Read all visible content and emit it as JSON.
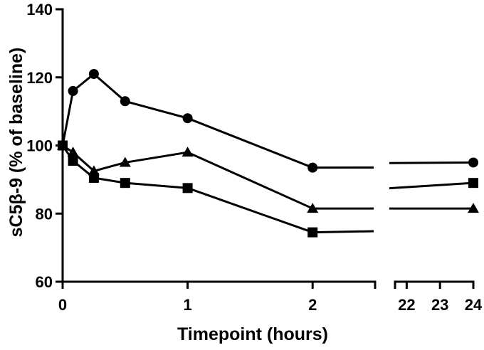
{
  "chart_data": {
    "type": "line",
    "title": "",
    "xlabel": "Timepoint (hours)",
    "ylabel": "sC5β-9 (% of baseline)",
    "ylim": [
      60,
      140
    ],
    "yticks": [
      60,
      80,
      100,
      120,
      140
    ],
    "x_axis_broken": true,
    "x_segments": [
      {
        "range": [
          0,
          2.5
        ],
        "ticks": [
          0,
          1,
          2
        ]
      },
      {
        "range": [
          21.65,
          24
        ],
        "ticks": [
          22,
          23,
          24
        ]
      }
    ],
    "legend": "none",
    "grid": false,
    "series": [
      {
        "marker": "circle",
        "x": [
          0,
          0.083,
          0.25,
          0.5,
          1,
          2,
          24
        ],
        "y": [
          100,
          116,
          121,
          113,
          108,
          93.5,
          95
        ]
      },
      {
        "marker": "triangle",
        "x": [
          0,
          0.083,
          0.25,
          0.5,
          1,
          2,
          24
        ],
        "y": [
          100,
          98,
          92.5,
          95,
          98,
          81.5,
          81.5
        ]
      },
      {
        "marker": "square",
        "x": [
          0,
          0.083,
          0.25,
          0.5,
          1,
          2,
          24
        ],
        "y": [
          100,
          95.5,
          90.5,
          89,
          87.5,
          74.5,
          89
        ]
      }
    ]
  }
}
